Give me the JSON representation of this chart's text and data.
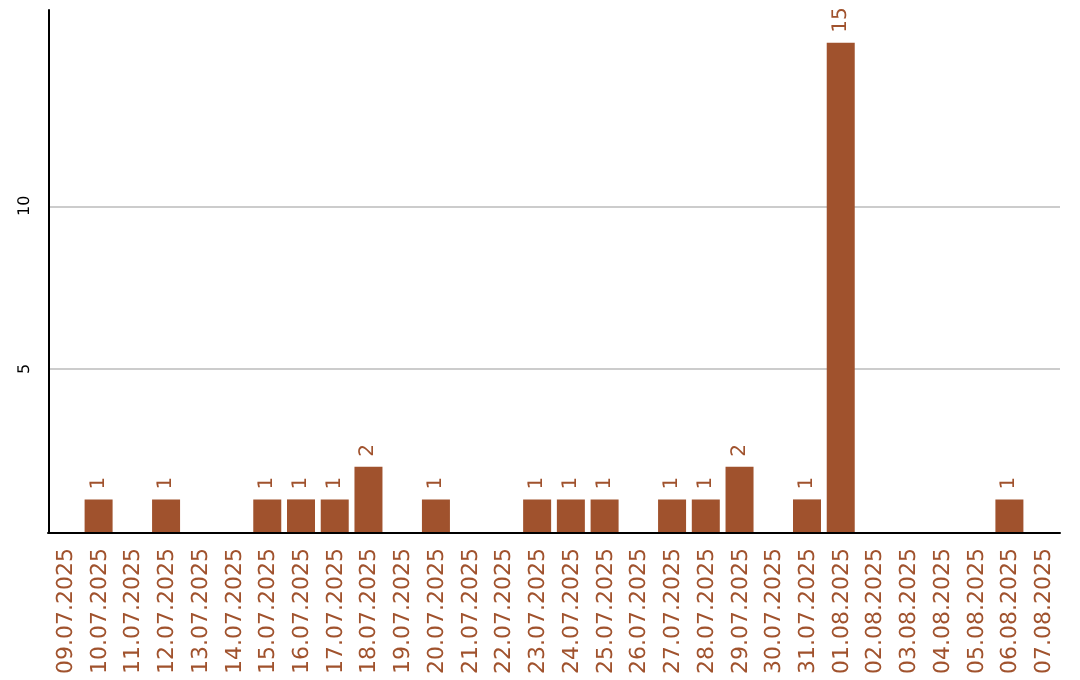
{
  "chart_data": {
    "type": "bar",
    "categories": [
      "09.07.2025",
      "10.07.2025",
      "11.07.2025",
      "12.07.2025",
      "13.07.2025",
      "14.07.2025",
      "15.07.2025",
      "16.07.2025",
      "17.07.2025",
      "18.07.2025",
      "19.07.2025",
      "20.07.2025",
      "21.07.2025",
      "22.07.2025",
      "23.07.2025",
      "24.07.2025",
      "25.07.2025",
      "26.07.2025",
      "27.07.2025",
      "28.07.2025",
      "29.07.2025",
      "30.07.2025",
      "31.07.2025",
      "01.08.2025",
      "02.08.2025",
      "03.08.2025",
      "04.08.2025",
      "05.08.2025",
      "06.08.2025",
      "07.08.2025"
    ],
    "values": [
      0,
      1,
      0,
      1,
      0,
      0,
      1,
      1,
      1,
      2,
      0,
      1,
      0,
      0,
      1,
      1,
      1,
      0,
      1,
      1,
      2,
      0,
      1,
      15,
      0,
      0,
      0,
      0,
      1,
      0
    ],
    "color": "#a0522d",
    "value_labels": [
      null,
      "1",
      null,
      "1",
      null,
      null,
      "1",
      "1",
      "1",
      "2",
      null,
      "1",
      null,
      null,
      "1",
      "1",
      "1",
      null,
      "1",
      "1",
      "2",
      null,
      "1",
      "15",
      null,
      null,
      null,
      null,
      "1",
      null
    ],
    "ylim": [
      0,
      16
    ],
    "yticks": [
      5,
      10
    ],
    "grid": "y"
  }
}
